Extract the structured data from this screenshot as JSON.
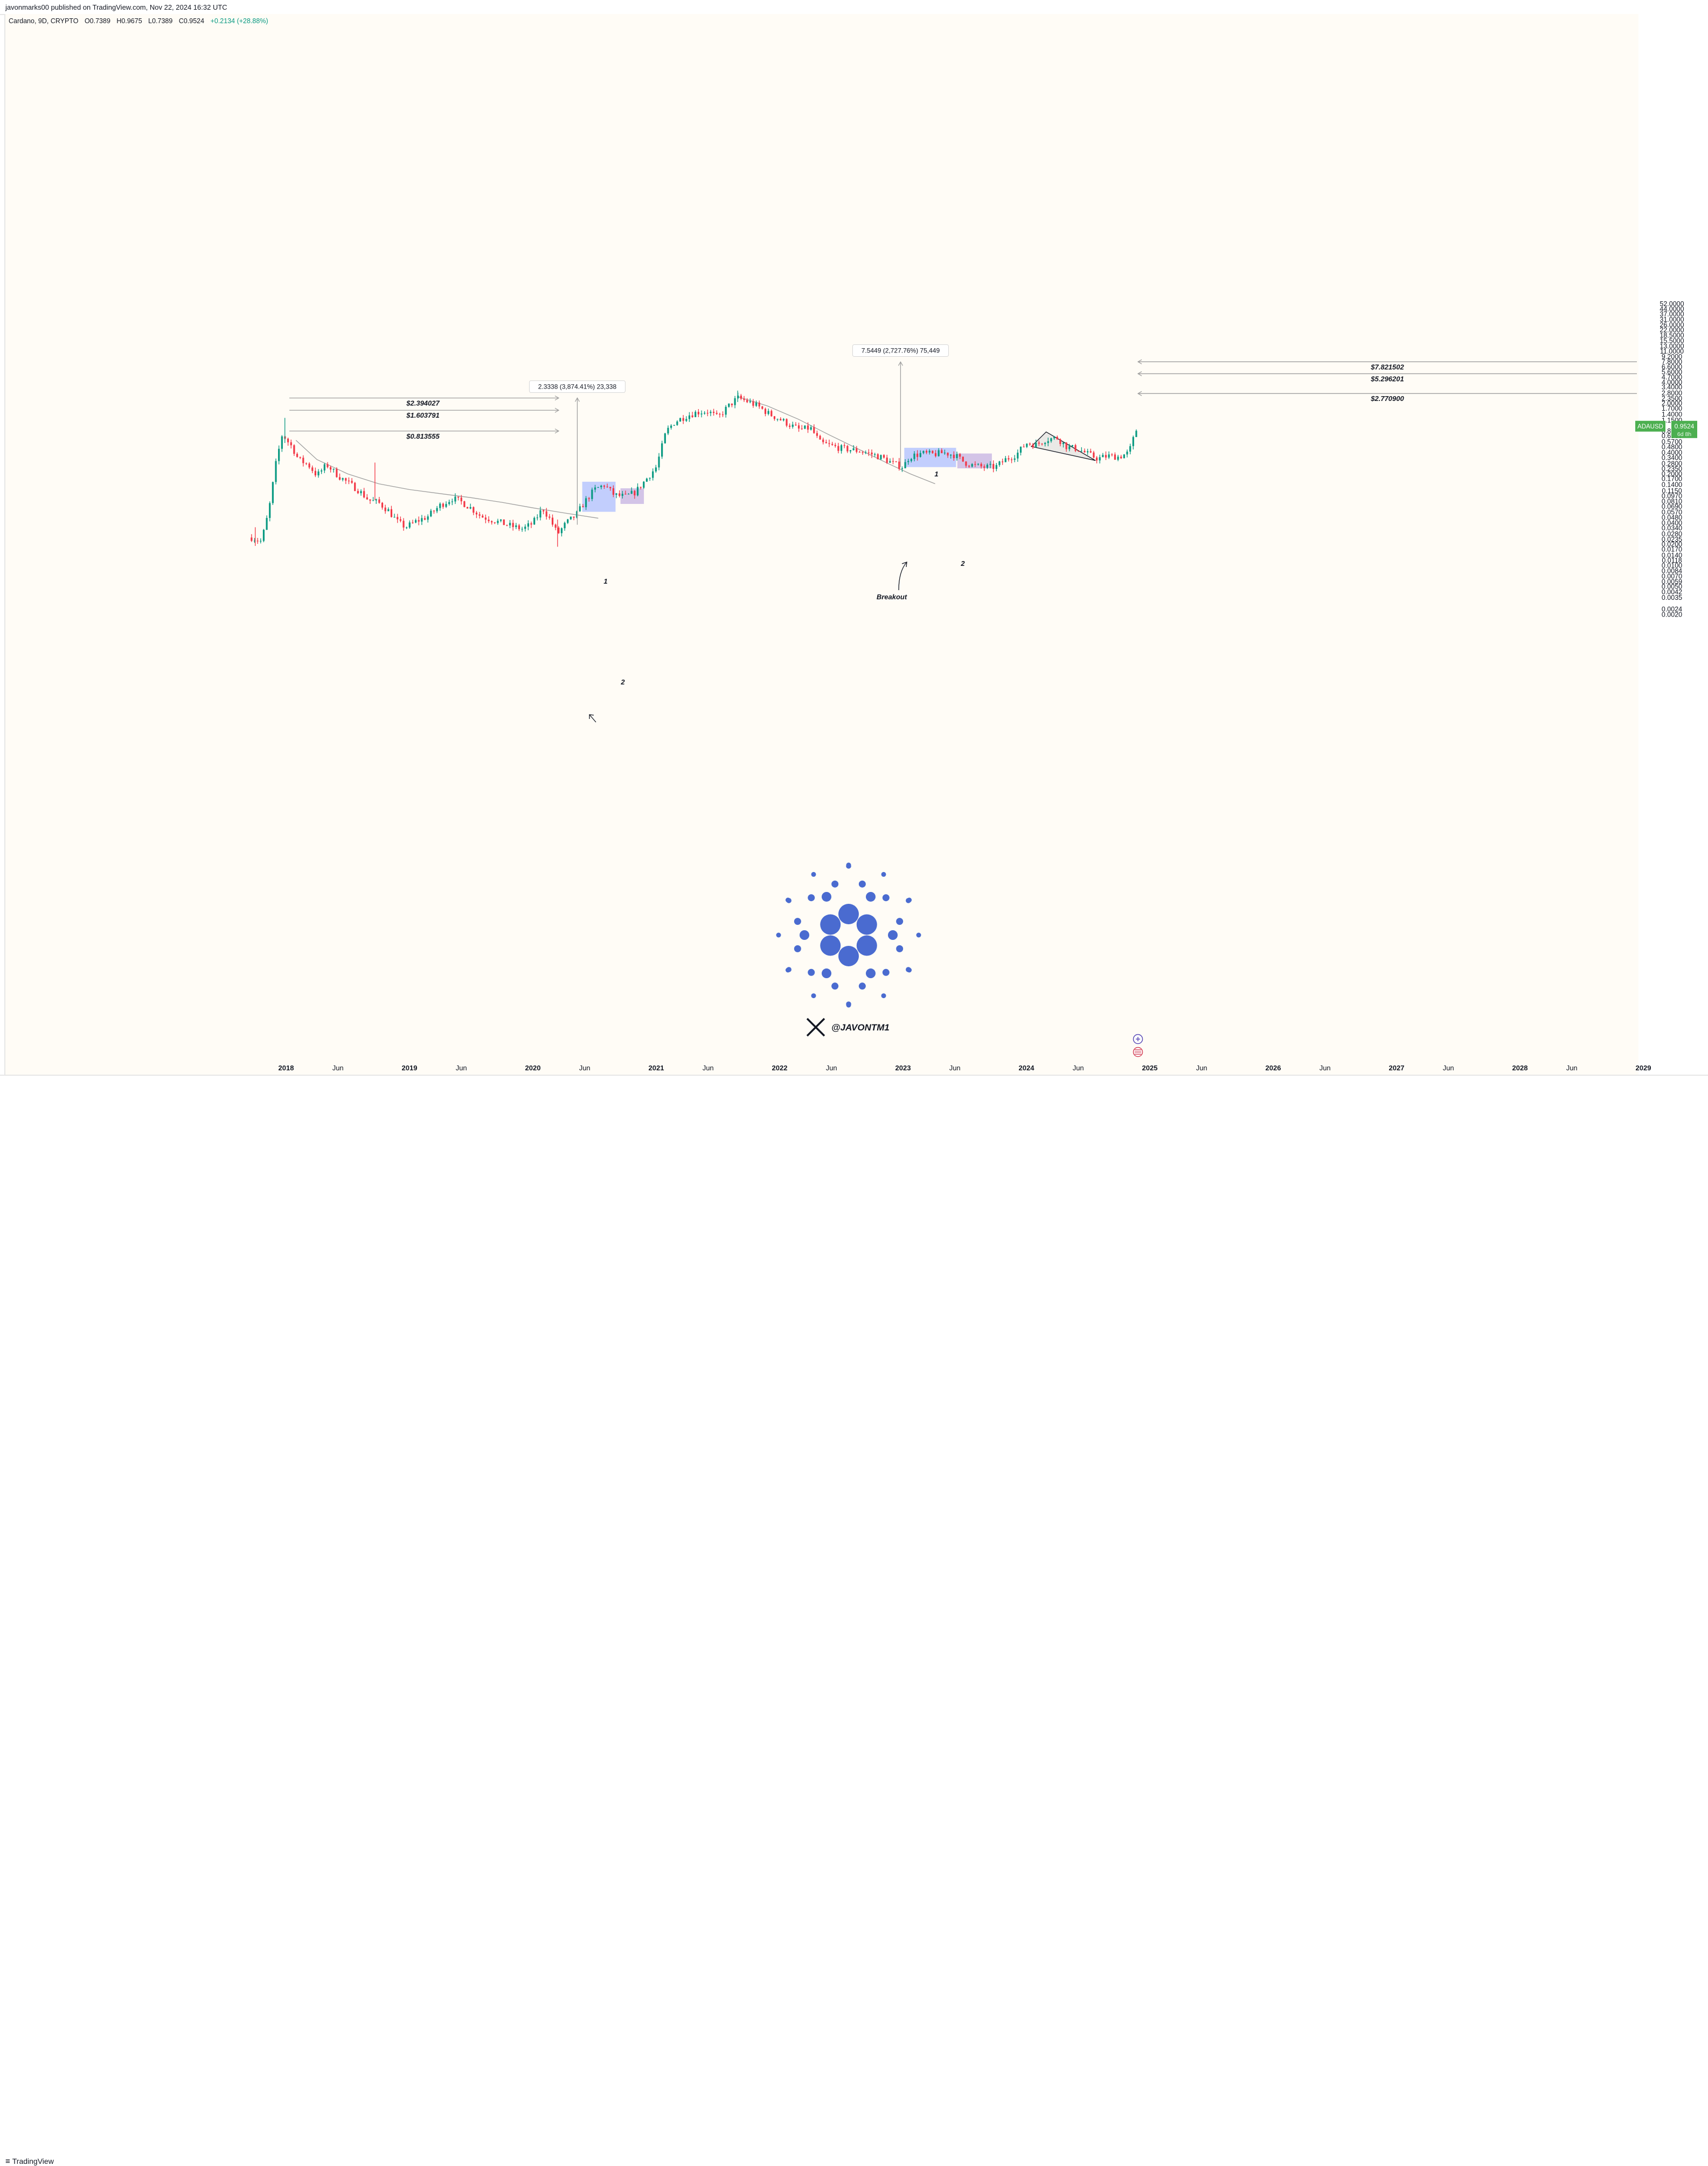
{
  "header": {
    "published": "javonmarks00 published on TradingView.com, Nov 22, 2024 16:32 UTC"
  },
  "legend": {
    "symbol": "Cardano, 9D, CRYPTO",
    "open": "O0.7389",
    "high": "H0.9675",
    "low": "L0.7389",
    "close": "C0.9524",
    "change": "+0.2134 (+28.88%)"
  },
  "footer": {
    "brand": "TradingView",
    "logo_icon": "tradingview-logo-icon"
  },
  "colors": {
    "up": "#089981",
    "down": "#f23645",
    "background": "#fffcf6",
    "box_blue": "#aebfff",
    "box_purple": "#c4b1e2",
    "line": "#9e9e9e",
    "cardano": "#4a6bd0",
    "price_tag": "#4caf50"
  },
  "chart_data": {
    "type": "candlestick",
    "title": "Cardano, 9D, CRYPTO",
    "symbol": "ADAUSD",
    "y_scale": "log",
    "y_ticks": [
      "52.0000",
      "44.0000",
      "37.0000",
      "31.0000",
      "26.0000",
      "22.0000",
      "18.5000",
      "15.5000",
      "13.0000",
      "11.0000",
      "9.2000",
      "7.8000",
      "6.6000",
      "5.6000",
      "4.7000",
      "4.0000",
      "3.4000",
      "2.8000",
      "2.3500",
      "2.0000",
      "1.7000",
      "1.4000",
      "1.1500",
      "0.8100",
      "0.6900",
      "0.5700",
      "0.4800",
      "0.4000",
      "0.3400",
      "0.2800",
      "0.2350",
      "0.2000",
      "0.1700",
      "0.1400",
      "0.1150",
      "0.0970",
      "0.0810",
      "0.0690",
      "0.0570",
      "0.0480",
      "0.0400",
      "0.0340",
      "0.0280",
      "0.0235",
      "0.0200",
      "0.0170",
      "0.0140",
      "0.0118",
      "0.0100",
      "0.0084",
      "0.0070",
      "0.0059",
      "0.0050",
      "0.0042",
      "0.0035",
      "0.0024",
      "0.0020"
    ],
    "x_ticks": [
      {
        "label": "2018",
        "t": 2018.0,
        "major": true
      },
      {
        "label": "Jun",
        "t": 2018.42
      },
      {
        "label": "2019",
        "t": 2019.0,
        "major": true
      },
      {
        "label": "Jun",
        "t": 2019.42
      },
      {
        "label": "2020",
        "t": 2020.0,
        "major": true
      },
      {
        "label": "Jun",
        "t": 2020.42
      },
      {
        "label": "2021",
        "t": 2021.0,
        "major": true
      },
      {
        "label": "Jun",
        "t": 2021.42
      },
      {
        "label": "2022",
        "t": 2022.0,
        "major": true
      },
      {
        "label": "Jun",
        "t": 2022.42
      },
      {
        "label": "2023",
        "t": 2023.0,
        "major": true
      },
      {
        "label": "Jun",
        "t": 2023.42
      },
      {
        "label": "2024",
        "t": 2024.0,
        "major": true
      },
      {
        "label": "Jun",
        "t": 2024.42
      },
      {
        "label": "2025",
        "t": 2025.0,
        "major": true
      },
      {
        "label": "Jun",
        "t": 2025.42
      },
      {
        "label": "2026",
        "t": 2026.0,
        "major": true
      },
      {
        "label": "Jun",
        "t": 2026.42
      },
      {
        "label": "2027",
        "t": 2027.0,
        "major": true
      },
      {
        "label": "Jun",
        "t": 2027.42
      },
      {
        "label": "2028",
        "t": 2028.0,
        "major": true
      },
      {
        "label": "Jun",
        "t": 2028.42
      },
      {
        "label": "2029",
        "t": 2029.0,
        "major": true
      }
    ],
    "price_path": [
      [
        2017.72,
        0.025
      ],
      [
        2017.8,
        0.022
      ],
      [
        2017.86,
        0.06
      ],
      [
        2017.92,
        0.3
      ],
      [
        2017.97,
        0.75
      ],
      [
        2018.0,
        0.62
      ],
      [
        2018.05,
        0.48
      ],
      [
        2018.1,
        0.32
      ],
      [
        2018.18,
        0.27
      ],
      [
        2018.25,
        0.19
      ],
      [
        2018.33,
        0.27
      ],
      [
        2018.42,
        0.19
      ],
      [
        2018.5,
        0.15
      ],
      [
        2018.58,
        0.12
      ],
      [
        2018.67,
        0.085
      ],
      [
        2018.75,
        0.078
      ],
      [
        2018.83,
        0.06
      ],
      [
        2018.9,
        0.042
      ],
      [
        2018.97,
        0.035
      ],
      [
        2019.05,
        0.042
      ],
      [
        2019.15,
        0.05
      ],
      [
        2019.25,
        0.072
      ],
      [
        2019.35,
        0.09
      ],
      [
        2019.42,
        0.08
      ],
      [
        2019.5,
        0.065
      ],
      [
        2019.58,
        0.05
      ],
      [
        2019.66,
        0.045
      ],
      [
        2019.75,
        0.04
      ],
      [
        2019.83,
        0.036
      ],
      [
        2019.92,
        0.033
      ],
      [
        2020.0,
        0.04
      ],
      [
        2020.08,
        0.065
      ],
      [
        2020.14,
        0.045
      ],
      [
        2020.2,
        0.028
      ],
      [
        2020.27,
        0.04
      ],
      [
        2020.35,
        0.052
      ],
      [
        2020.42,
        0.08
      ],
      [
        2020.5,
        0.12
      ],
      [
        2020.58,
        0.14
      ],
      [
        2020.66,
        0.1
      ],
      [
        2020.75,
        0.095
      ],
      [
        2020.83,
        0.11
      ],
      [
        2020.92,
        0.17
      ],
      [
        2021.0,
        0.25
      ],
      [
        2021.08,
        0.8
      ],
      [
        2021.15,
        1.1
      ],
      [
        2021.25,
        1.35
      ],
      [
        2021.33,
        1.5
      ],
      [
        2021.42,
        1.55
      ],
      [
        2021.5,
        1.25
      ],
      [
        2021.58,
        1.8
      ],
      [
        2021.66,
        2.4
      ],
      [
        2021.75,
        2.1
      ],
      [
        2021.83,
        1.8
      ],
      [
        2021.92,
        1.4
      ],
      [
        2022.0,
        1.2
      ],
      [
        2022.08,
        1.0
      ],
      [
        2022.16,
        0.85
      ],
      [
        2022.25,
        0.9
      ],
      [
        2022.33,
        0.55
      ],
      [
        2022.42,
        0.5
      ],
      [
        2022.5,
        0.46
      ],
      [
        2022.58,
        0.44
      ],
      [
        2022.66,
        0.42
      ],
      [
        2022.75,
        0.38
      ],
      [
        2022.83,
        0.34
      ],
      [
        2022.92,
        0.28
      ],
      [
        2023.0,
        0.25
      ],
      [
        2023.05,
        0.35
      ],
      [
        2023.15,
        0.39
      ],
      [
        2023.25,
        0.38
      ],
      [
        2023.33,
        0.4
      ],
      [
        2023.42,
        0.37
      ],
      [
        2023.5,
        0.29
      ],
      [
        2023.58,
        0.26
      ],
      [
        2023.66,
        0.25
      ],
      [
        2023.75,
        0.25
      ],
      [
        2023.83,
        0.32
      ],
      [
        2023.92,
        0.38
      ],
      [
        2024.0,
        0.55
      ],
      [
        2024.08,
        0.52
      ],
      [
        2024.16,
        0.62
      ],
      [
        2024.25,
        0.65
      ],
      [
        2024.33,
        0.48
      ],
      [
        2024.42,
        0.45
      ],
      [
        2024.5,
        0.38
      ],
      [
        2024.58,
        0.33
      ],
      [
        2024.66,
        0.36
      ],
      [
        2024.75,
        0.35
      ],
      [
        2024.83,
        0.4
      ],
      [
        2024.88,
        0.74
      ],
      [
        2024.9,
        0.95
      ]
    ],
    "last_price": {
      "symbol": "ADAUSD",
      "value": "0.9524",
      "countdown": "6d 8h"
    },
    "targets_2020": [
      {
        "label": "$2.394027",
        "value": 2.394027
      },
      {
        "label": "$1.603791",
        "value": 1.603791
      },
      {
        "label": "$0.813555",
        "value": 0.813555
      }
    ],
    "targets_2025": [
      {
        "label": "$7.821502",
        "value": 7.821502
      },
      {
        "label": "$5.296201",
        "value": 5.296201
      },
      {
        "label": "$2.770900",
        "value": 2.7709
      }
    ],
    "measures": [
      {
        "label": "2.3338 (3,874.41%) 23,338",
        "t": 2020.36,
        "from": 0.038,
        "to": 2.4
      },
      {
        "label": "7.5449 (2,727.76%) 75,449",
        "t": 2022.98,
        "from": 0.25,
        "to": 7.8
      }
    ],
    "annotations": [
      {
        "text": "1",
        "kind": "box-number"
      },
      {
        "text": "2",
        "kind": "box-number"
      },
      {
        "text": "1",
        "kind": "box-number"
      },
      {
        "text": "2",
        "kind": "box-number"
      },
      {
        "text": "Breakout",
        "kind": "callout"
      }
    ],
    "watermark": {
      "handle": "@JAVONTM1",
      "icon": "x-logo-icon",
      "logo": "cardano-logo-icon"
    }
  }
}
